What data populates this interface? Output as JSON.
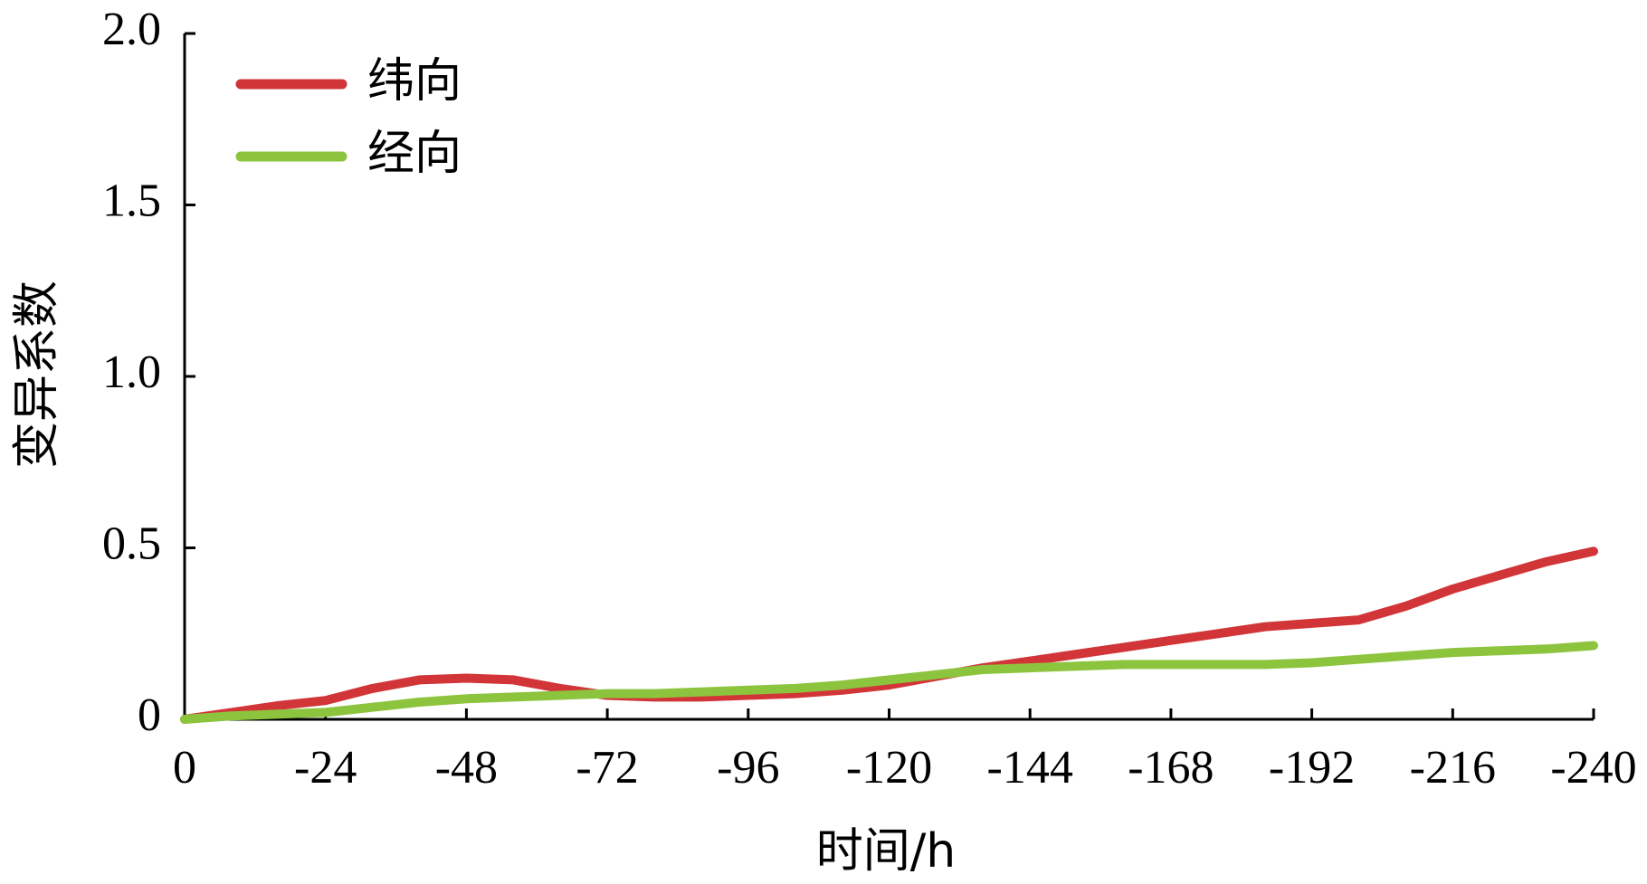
{
  "chart_data": {
    "type": "line",
    "xlabel": "时间/h",
    "ylabel": "变异系数",
    "x": [
      0,
      -8,
      -16,
      -24,
      -32,
      -40,
      -48,
      -56,
      -64,
      -72,
      -80,
      -88,
      -96,
      -104,
      -112,
      -120,
      -128,
      -136,
      -144,
      -152,
      -160,
      -168,
      -176,
      -184,
      -192,
      -200,
      -208,
      -216,
      -224,
      -232,
      -240
    ],
    "series": [
      {
        "name": "纬向",
        "color": "#d13537",
        "values": [
          0,
          0.02,
          0.04,
          0.055,
          0.09,
          0.115,
          0.12,
          0.115,
          0.09,
          0.07,
          0.065,
          0.065,
          0.07,
          0.075,
          0.085,
          0.1,
          0.125,
          0.15,
          0.17,
          0.19,
          0.21,
          0.23,
          0.25,
          0.27,
          0.28,
          0.29,
          0.33,
          0.38,
          0.42,
          0.46,
          0.49
        ]
      },
      {
        "name": "经向",
        "color": "#8dc43e",
        "values": [
          0,
          0.01,
          0.015,
          0.02,
          0.035,
          0.05,
          0.06,
          0.065,
          0.07,
          0.075,
          0.075,
          0.08,
          0.085,
          0.09,
          0.1,
          0.115,
          0.13,
          0.145,
          0.15,
          0.155,
          0.16,
          0.16,
          0.16,
          0.16,
          0.165,
          0.175,
          0.185,
          0.195,
          0.2,
          0.205,
          0.215
        ]
      }
    ],
    "xlim": [
      0,
      -240
    ],
    "xticks": [
      0,
      -24,
      -48,
      -72,
      -96,
      -120,
      -144,
      -168,
      -192,
      -216,
      -240
    ],
    "ylim": [
      0,
      2
    ],
    "yticks": [
      0,
      0.5,
      {
        "value": 1,
        "label": "1.0"
      },
      1.5,
      {
        "value": 2,
        "label": "2.0"
      }
    ],
    "legend": "upper left"
  }
}
